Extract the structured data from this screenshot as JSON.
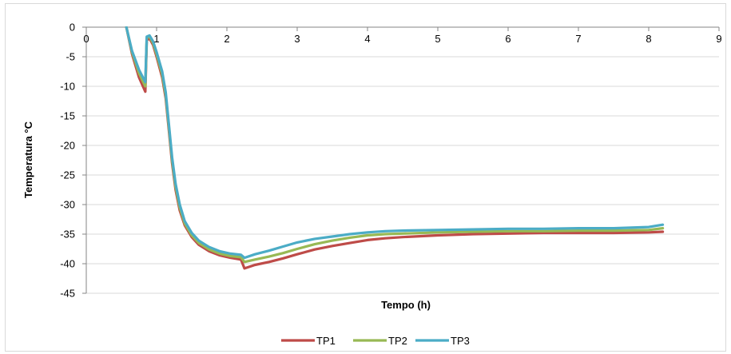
{
  "chart_data": {
    "type": "line",
    "title": "",
    "xlabel": "Tempo (h)",
    "ylabel": "Temperatura °C",
    "xlim": [
      0,
      9
    ],
    "ylim": [
      -45,
      0
    ],
    "x_ticks": [
      0,
      1,
      2,
      3,
      4,
      5,
      6,
      7,
      8,
      9
    ],
    "y_ticks": [
      0,
      -5,
      -10,
      -15,
      -20,
      -25,
      -30,
      -35,
      -40,
      -45
    ],
    "grid": "horizontal",
    "legend_position": "bottom",
    "series": [
      {
        "name": "TP1",
        "color": "#be4b48",
        "points": [
          [
            0.57,
            0
          ],
          [
            0.65,
            -4.5
          ],
          [
            0.75,
            -8.5
          ],
          [
            0.84,
            -10.9
          ],
          [
            0.86,
            -2.2
          ],
          [
            0.9,
            -1.9
          ],
          [
            0.95,
            -3.0
          ],
          [
            1.0,
            -5.0
          ],
          [
            1.08,
            -8.5
          ],
          [
            1.13,
            -12
          ],
          [
            1.18,
            -18
          ],
          [
            1.22,
            -23
          ],
          [
            1.27,
            -27.5
          ],
          [
            1.33,
            -31
          ],
          [
            1.4,
            -33.5
          ],
          [
            1.5,
            -35.5
          ],
          [
            1.6,
            -36.8
          ],
          [
            1.75,
            -37.9
          ],
          [
            1.9,
            -38.6
          ],
          [
            2.05,
            -39.0
          ],
          [
            2.2,
            -39.3
          ],
          [
            2.25,
            -40.8
          ],
          [
            2.4,
            -40.2
          ],
          [
            2.6,
            -39.7
          ],
          [
            2.8,
            -39.1
          ],
          [
            3.0,
            -38.4
          ],
          [
            3.25,
            -37.6
          ],
          [
            3.5,
            -37.0
          ],
          [
            3.75,
            -36.5
          ],
          [
            4.0,
            -36.0
          ],
          [
            4.25,
            -35.7
          ],
          [
            4.5,
            -35.5
          ],
          [
            5.0,
            -35.2
          ],
          [
            5.5,
            -35.0
          ],
          [
            6.0,
            -34.9
          ],
          [
            6.5,
            -34.8
          ],
          [
            7.0,
            -34.8
          ],
          [
            7.5,
            -34.8
          ],
          [
            8.0,
            -34.7
          ],
          [
            8.2,
            -34.6
          ]
        ]
      },
      {
        "name": "TP2",
        "color": "#98b954",
        "points": [
          [
            0.57,
            0
          ],
          [
            0.65,
            -4.2
          ],
          [
            0.75,
            -7.8
          ],
          [
            0.84,
            -10.0
          ],
          [
            0.86,
            -1.8
          ],
          [
            0.9,
            -1.6
          ],
          [
            0.95,
            -2.7
          ],
          [
            1.0,
            -4.6
          ],
          [
            1.08,
            -8.0
          ],
          [
            1.13,
            -11.5
          ],
          [
            1.18,
            -17.5
          ],
          [
            1.22,
            -22.5
          ],
          [
            1.27,
            -27
          ],
          [
            1.33,
            -30.5
          ],
          [
            1.4,
            -33.2
          ],
          [
            1.5,
            -35.2
          ],
          [
            1.6,
            -36.5
          ],
          [
            1.75,
            -37.6
          ],
          [
            1.9,
            -38.3
          ],
          [
            2.05,
            -38.7
          ],
          [
            2.2,
            -38.9
          ],
          [
            2.25,
            -39.7
          ],
          [
            2.4,
            -39.3
          ],
          [
            2.6,
            -38.8
          ],
          [
            2.8,
            -38.2
          ],
          [
            3.0,
            -37.5
          ],
          [
            3.25,
            -36.7
          ],
          [
            3.5,
            -36.1
          ],
          [
            3.75,
            -35.6
          ],
          [
            4.0,
            -35.2
          ],
          [
            4.25,
            -35.0
          ],
          [
            4.5,
            -34.9
          ],
          [
            5.0,
            -34.7
          ],
          [
            5.5,
            -34.6
          ],
          [
            6.0,
            -34.5
          ],
          [
            6.5,
            -34.5
          ],
          [
            7.0,
            -34.4
          ],
          [
            7.5,
            -34.4
          ],
          [
            8.0,
            -34.3
          ],
          [
            8.2,
            -34.0
          ]
        ]
      },
      {
        "name": "TP3",
        "color": "#4bacc6",
        "points": [
          [
            0.57,
            0
          ],
          [
            0.65,
            -4.0
          ],
          [
            0.75,
            -7.2
          ],
          [
            0.84,
            -9.3
          ],
          [
            0.86,
            -1.6
          ],
          [
            0.9,
            -1.4
          ],
          [
            0.95,
            -2.4
          ],
          [
            1.0,
            -4.2
          ],
          [
            1.08,
            -7.5
          ],
          [
            1.13,
            -11.0
          ],
          [
            1.18,
            -17
          ],
          [
            1.22,
            -22
          ],
          [
            1.27,
            -26.5
          ],
          [
            1.33,
            -30
          ],
          [
            1.4,
            -32.8
          ],
          [
            1.5,
            -34.8
          ],
          [
            1.6,
            -36.1
          ],
          [
            1.75,
            -37.2
          ],
          [
            1.9,
            -37.9
          ],
          [
            2.05,
            -38.3
          ],
          [
            2.2,
            -38.5
          ],
          [
            2.25,
            -39.0
          ],
          [
            2.4,
            -38.4
          ],
          [
            2.6,
            -37.8
          ],
          [
            2.8,
            -37.1
          ],
          [
            3.0,
            -36.4
          ],
          [
            3.25,
            -35.8
          ],
          [
            3.5,
            -35.4
          ],
          [
            3.75,
            -35.0
          ],
          [
            4.0,
            -34.7
          ],
          [
            4.25,
            -34.5
          ],
          [
            4.5,
            -34.4
          ],
          [
            5.0,
            -34.3
          ],
          [
            5.5,
            -34.2
          ],
          [
            6.0,
            -34.1
          ],
          [
            6.5,
            -34.1
          ],
          [
            7.0,
            -34.0
          ],
          [
            7.5,
            -34.0
          ],
          [
            8.0,
            -33.8
          ],
          [
            8.2,
            -33.4
          ]
        ]
      }
    ]
  }
}
